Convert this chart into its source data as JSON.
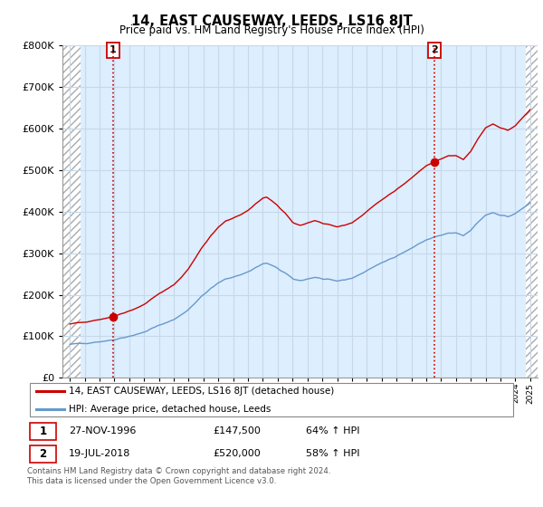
{
  "title": "14, EAST CAUSEWAY, LEEDS, LS16 8JT",
  "subtitle": "Price paid vs. HM Land Registry's House Price Index (HPI)",
  "legend_line1": "14, EAST CAUSEWAY, LEEDS, LS16 8JT (detached house)",
  "legend_line2": "HPI: Average price, detached house, Leeds",
  "sale1_date": "27-NOV-1996",
  "sale1_price": "£147,500",
  "sale1_hpi": "64% ↑ HPI",
  "sale1_year": 1996.9,
  "sale1_value": 147500,
  "sale2_date": "19-JUL-2018",
  "sale2_price": "£520,000",
  "sale2_hpi": "58% ↑ HPI",
  "sale2_year": 2018.55,
  "sale2_value": 520000,
  "footer": "Contains HM Land Registry data © Crown copyright and database right 2024.\nThis data is licensed under the Open Government Licence v3.0.",
  "red_color": "#cc0000",
  "blue_color": "#6699cc",
  "plot_bg_color": "#ddeeff",
  "background_color": "#ffffff",
  "grid_color": "#c8d8e8",
  "ylim": [
    0,
    800000
  ],
  "xlim_start": 1993.5,
  "xlim_end": 2025.5,
  "hatch_end": 1994.7,
  "hatch_start_right": 2024.7
}
